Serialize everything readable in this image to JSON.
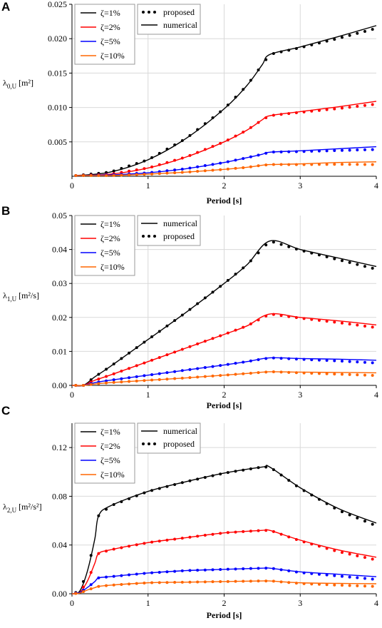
{
  "chart_data": [
    {
      "panel_label": "A",
      "type": "line",
      "xlabel": "Period [s]",
      "ylabel": "λ",
      "ylabel_sub": "0,U",
      "ylabel_unit": " [m²]",
      "xlim": [
        0,
        4
      ],
      "ylim": [
        0,
        0.025
      ],
      "xticks": [
        "0",
        "1",
        "2",
        "3",
        "4"
      ],
      "yticks": [
        "0.005",
        "0.010",
        "0.015",
        "0.020",
        "0.025"
      ],
      "grid": true,
      "legend_order": [
        "proposed",
        "numerical"
      ],
      "style_legend": {
        "proposed": "proposed",
        "numerical": "numerical"
      },
      "series": [
        {
          "name": "ζ=1%",
          "color": "#000000",
          "x": [
            0.05,
            0.5,
            1.0,
            1.5,
            2.0,
            2.3,
            2.5,
            2.6,
            3.0,
            3.5,
            4.0
          ],
          "y": [
            0.0001,
            0.0006,
            0.0024,
            0.0055,
            0.0098,
            0.0132,
            0.0162,
            0.0177,
            0.0188,
            0.0203,
            0.0219
          ]
        },
        {
          "name": "ζ=2%",
          "color": "#ff0000",
          "x": [
            0.05,
            0.5,
            1.0,
            1.5,
            2.0,
            2.3,
            2.5,
            2.6,
            3.0,
            3.5,
            4.0
          ],
          "y": [
            0.0001,
            0.0003,
            0.0012,
            0.0028,
            0.005,
            0.0067,
            0.0082,
            0.0088,
            0.0094,
            0.0101,
            0.0109
          ]
        },
        {
          "name": "ζ=5%",
          "color": "#0000ff",
          "x": [
            0.05,
            0.5,
            1.0,
            1.5,
            2.0,
            2.3,
            2.5,
            2.6,
            3.0,
            3.5,
            4.0
          ],
          "y": [
            0.0001,
            0.0002,
            0.0005,
            0.0011,
            0.002,
            0.0027,
            0.0032,
            0.0035,
            0.0037,
            0.004,
            0.0043
          ]
        },
        {
          "name": "ζ=10%",
          "color": "#ff6600",
          "x": [
            0.05,
            0.5,
            1.0,
            1.5,
            2.0,
            2.3,
            2.5,
            2.6,
            3.0,
            3.5,
            4.0
          ],
          "y": [
            0.0001,
            0.0001,
            0.0003,
            0.0006,
            0.001,
            0.0013,
            0.0016,
            0.0017,
            0.0018,
            0.002,
            0.0021
          ]
        }
      ]
    },
    {
      "panel_label": "B",
      "type": "line",
      "xlabel": "Period [s]",
      "ylabel": "λ",
      "ylabel_sub": "1,U",
      "ylabel_unit": " [m²/s]",
      "xlim": [
        0,
        4
      ],
      "ylim": [
        0,
        0.05
      ],
      "xticks": [
        "0",
        "1",
        "2",
        "3",
        "4"
      ],
      "yticks": [
        "0.00",
        "0.01",
        "0.02",
        "0.03",
        "0.04",
        "0.05"
      ],
      "grid": true,
      "legend_order": [
        "numerical",
        "proposed"
      ],
      "style_legend": {
        "proposed": "proposed",
        "numerical": "numerical"
      },
      "series": [
        {
          "name": "ζ=1%",
          "color": "#000000",
          "x": [
            0.0,
            0.15,
            0.3,
            0.5,
            1.0,
            1.5,
            2.0,
            2.3,
            2.6,
            3.0,
            3.5,
            4.0
          ],
          "y": [
            0.0,
            0.0,
            0.0025,
            0.0055,
            0.0135,
            0.0215,
            0.03,
            0.0355,
            0.0425,
            0.04,
            0.0375,
            0.035
          ]
        },
        {
          "name": "ζ=2%",
          "color": "#ff0000",
          "x": [
            0.0,
            0.15,
            0.3,
            0.5,
            1.0,
            1.5,
            2.0,
            2.3,
            2.6,
            3.0,
            3.5,
            4.0
          ],
          "y": [
            0.0,
            0.0,
            0.0015,
            0.003,
            0.007,
            0.011,
            0.015,
            0.0175,
            0.021,
            0.02,
            0.019,
            0.0178
          ]
        },
        {
          "name": "ζ=5%",
          "color": "#0000ff",
          "x": [
            0.0,
            0.15,
            0.3,
            0.5,
            1.0,
            1.5,
            2.0,
            2.3,
            2.6,
            3.0,
            3.5,
            4.0
          ],
          "y": [
            0.0,
            0.0,
            0.0008,
            0.0015,
            0.003,
            0.0045,
            0.006,
            0.007,
            0.0081,
            0.0079,
            0.0077,
            0.0074
          ]
        },
        {
          "name": "ζ=10%",
          "color": "#ff6600",
          "x": [
            0.0,
            0.15,
            0.3,
            0.5,
            1.0,
            1.5,
            2.0,
            2.3,
            2.6,
            3.0,
            3.5,
            4.0
          ],
          "y": [
            0.0,
            0.0,
            0.0004,
            0.0008,
            0.0015,
            0.0022,
            0.003,
            0.0035,
            0.004,
            0.0039,
            0.0038,
            0.0037
          ]
        }
      ]
    },
    {
      "panel_label": "C",
      "type": "line",
      "xlabel": "Period [s]",
      "ylabel": "λ",
      "ylabel_sub": "2,U",
      "ylabel_unit": " [m²/s²]",
      "xlim": [
        0,
        4
      ],
      "ylim": [
        0,
        0.14
      ],
      "xticks": [
        "0",
        "1",
        "2",
        "3",
        "4"
      ],
      "yticks": [
        "0.00",
        "0.04",
        "0.08",
        "0.12"
      ],
      "ytick_values": [
        0,
        0.04,
        0.08,
        0.12
      ],
      "grid": true,
      "legend_order": [
        "numerical",
        "proposed"
      ],
      "style_legend": {
        "proposed": "proposed",
        "numerical": "numerical"
      },
      "series": [
        {
          "name": "ζ=1%",
          "color": "#000000",
          "x": [
            0.0,
            0.1,
            0.2,
            0.3,
            0.35,
            0.5,
            1.0,
            1.5,
            2.0,
            2.5,
            2.6,
            3.0,
            3.5,
            4.0
          ],
          "y": [
            0.0,
            0.002,
            0.018,
            0.045,
            0.064,
            0.072,
            0.084,
            0.092,
            0.099,
            0.104,
            0.104,
            0.087,
            0.07,
            0.058
          ]
        },
        {
          "name": "ζ=2%",
          "color": "#ff0000",
          "x": [
            0.0,
            0.1,
            0.2,
            0.3,
            0.35,
            0.5,
            1.0,
            1.5,
            2.0,
            2.5,
            2.6,
            3.0,
            3.5,
            4.0
          ],
          "y": [
            0.0,
            0.001,
            0.01,
            0.025,
            0.033,
            0.036,
            0.042,
            0.046,
            0.05,
            0.052,
            0.052,
            0.044,
            0.036,
            0.03
          ]
        },
        {
          "name": "ζ=5%",
          "color": "#0000ff",
          "x": [
            0.0,
            0.1,
            0.2,
            0.3,
            0.35,
            0.5,
            1.0,
            1.5,
            2.0,
            2.5,
            2.6,
            3.0,
            3.5,
            4.0
          ],
          "y": [
            0.0,
            0.001,
            0.005,
            0.01,
            0.013,
            0.014,
            0.017,
            0.019,
            0.02,
            0.021,
            0.021,
            0.018,
            0.016,
            0.014
          ]
        },
        {
          "name": "ζ=10%",
          "color": "#ff6600",
          "x": [
            0.0,
            0.1,
            0.2,
            0.3,
            0.35,
            0.5,
            1.0,
            1.5,
            2.0,
            2.5,
            2.6,
            3.0,
            3.5,
            4.0
          ],
          "y": [
            0.0,
            0.0005,
            0.003,
            0.005,
            0.006,
            0.007,
            0.009,
            0.0095,
            0.01,
            0.0105,
            0.0105,
            0.009,
            0.0085,
            0.0082
          ]
        }
      ]
    }
  ]
}
